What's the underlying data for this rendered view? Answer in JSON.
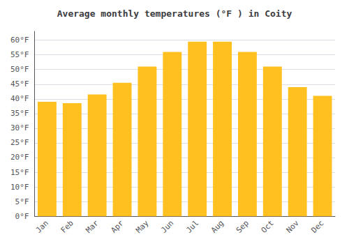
{
  "chart_data": {
    "type": "bar",
    "title": "Average monthly temperatures (°F ) in Coity",
    "categories": [
      "Jan",
      "Feb",
      "Mar",
      "Apr",
      "May",
      "Jun",
      "Jul",
      "Aug",
      "Sep",
      "Oct",
      "Nov",
      "Dec"
    ],
    "values": [
      39,
      38.5,
      41.5,
      45.5,
      51,
      56,
      59.5,
      59.5,
      56,
      51,
      44,
      41
    ],
    "color": "#FFC020",
    "ylim": [
      0,
      63
    ],
    "yticks": [
      {
        "value": 0,
        "label": "0°F"
      },
      {
        "value": 5,
        "label": "5°F"
      },
      {
        "value": 10,
        "label": "10°F"
      },
      {
        "value": 15,
        "label": "15°F"
      },
      {
        "value": 20,
        "label": "20°F"
      },
      {
        "value": 25,
        "label": "25°F"
      },
      {
        "value": 30,
        "label": "30°F"
      },
      {
        "value": 35,
        "label": "35°F"
      },
      {
        "value": 40,
        "label": "40°F"
      },
      {
        "value": 45,
        "label": "45°F"
      },
      {
        "value": 50,
        "label": "50°F"
      },
      {
        "value": 55,
        "label": "55°F"
      },
      {
        "value": 60,
        "label": "60°F"
      }
    ],
    "grid": true
  }
}
